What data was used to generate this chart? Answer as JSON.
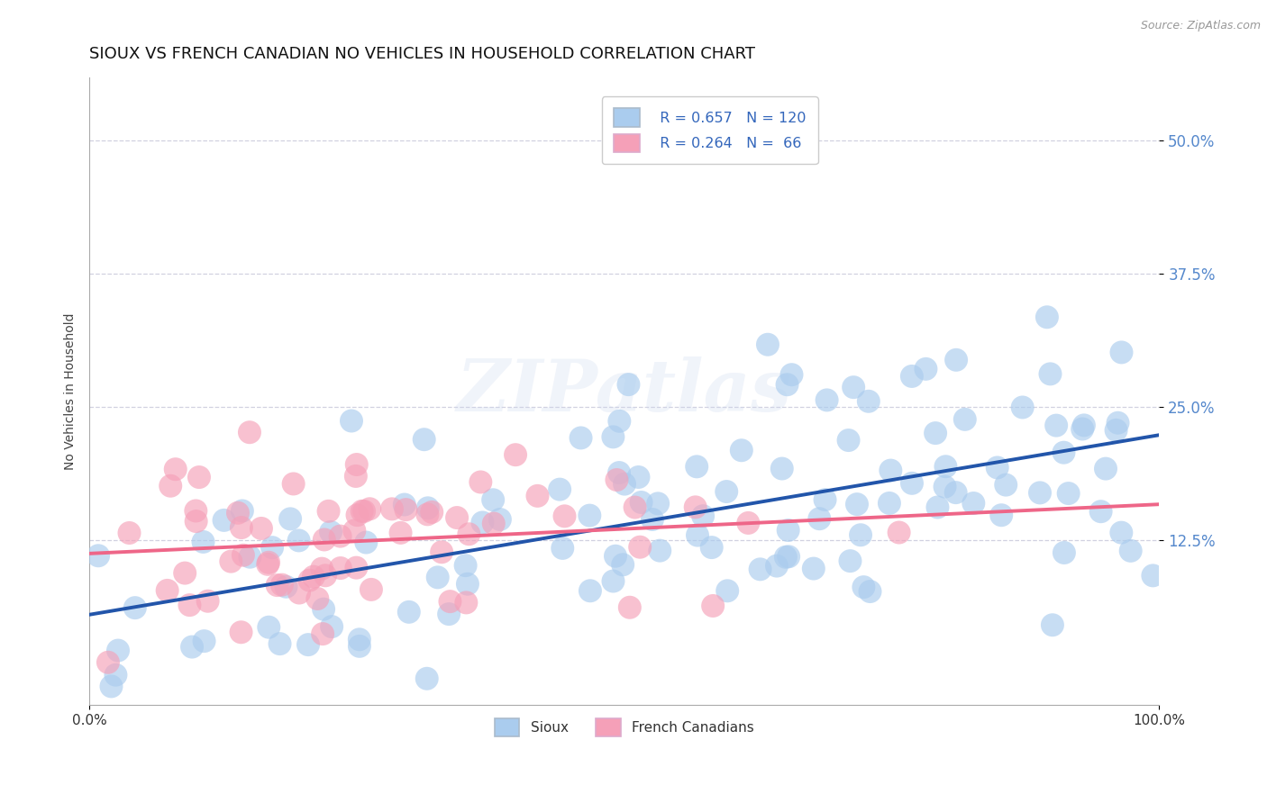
{
  "title": "SIOUX VS FRENCH CANADIAN NO VEHICLES IN HOUSEHOLD CORRELATION CHART",
  "source": "Source: ZipAtlas.com",
  "ylabel": "No Vehicles in Household",
  "xlim": [
    0.0,
    1.0
  ],
  "ylim": [
    -0.03,
    0.56
  ],
  "ytick_vals": [
    0.125,
    0.25,
    0.375,
    0.5
  ],
  "ytick_labels": [
    "12.5%",
    "25.0%",
    "37.5%",
    "50.0%"
  ],
  "xtick_vals": [
    0.0,
    1.0
  ],
  "xtick_labels": [
    "0.0%",
    "100.0%"
  ],
  "sioux_color": "#aaccee",
  "french_color": "#f5a0b8",
  "sioux_line_color": "#2255aa",
  "french_line_color": "#ee6688",
  "watermark": "ZIPatlas",
  "R_sioux": 0.657,
  "N_sioux": 120,
  "R_french": 0.264,
  "N_french": 66,
  "background_color": "#ffffff",
  "grid_color": "#ccccdd",
  "title_fontsize": 13,
  "axis_label_fontsize": 10,
  "tick_color": "#5588cc",
  "legend_r_color": "#3366bb",
  "legend_n_color": "#dd3344"
}
